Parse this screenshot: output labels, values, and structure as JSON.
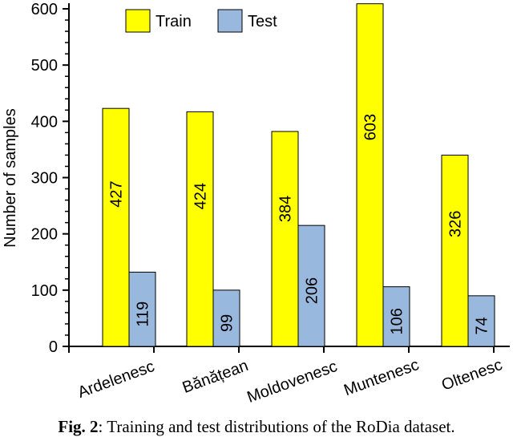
{
  "chart_data": {
    "type": "bar",
    "categories": [
      "Ardelenesc",
      "Bănățean",
      "Moldovenesc",
      "Muntenesc",
      "Oltenesc"
    ],
    "series": [
      {
        "name": "Train",
        "values": [
          427,
          424,
          384,
          603,
          326
        ],
        "color": "#ffff00"
      },
      {
        "name": "Test",
        "values": [
          119,
          99,
          206,
          106,
          74
        ],
        "color": "#99b8dd"
      }
    ],
    "bar_heights_axis": [
      423,
      417,
      382,
      609,
      340,
      132,
      100,
      215,
      106,
      90
    ],
    "ylabel": "Number of samples",
    "xlabel": "",
    "ylim": [
      0,
      600
    ],
    "yticks": [
      0,
      100,
      200,
      300,
      400,
      500,
      600
    ],
    "legend_position": "top-center",
    "grid": false
  },
  "caption": {
    "label": "Fig. 2",
    "text": ": Training and test distributions of the RoDia dataset."
  }
}
